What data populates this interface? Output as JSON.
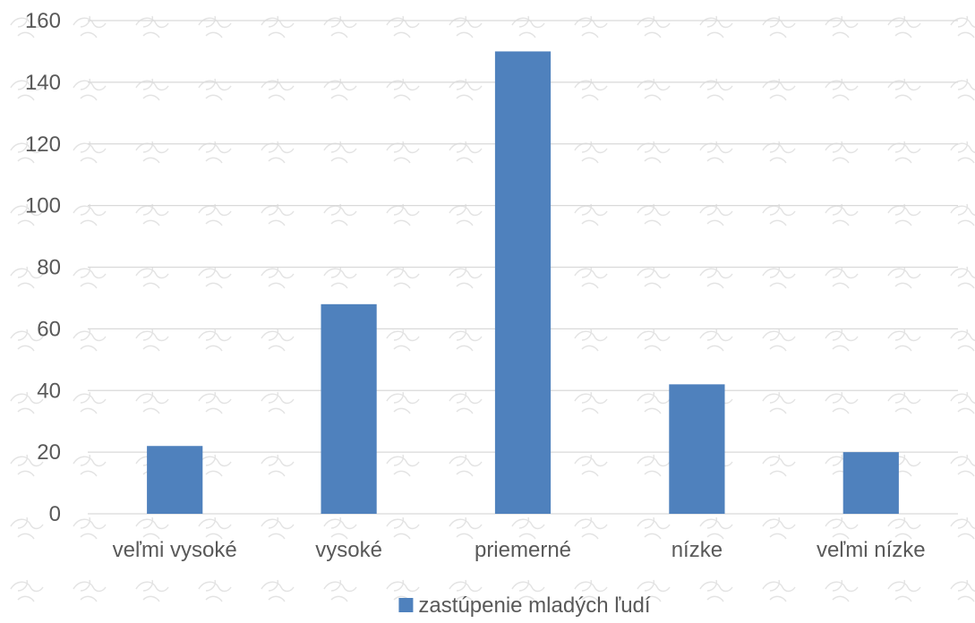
{
  "chart_data": {
    "type": "bar",
    "categories": [
      "veľmi vysoké",
      "vysoké",
      "priemerné",
      "nízke",
      "veľmi nízke"
    ],
    "series": [
      {
        "name": "zastúpenie mladých ľudí",
        "values": [
          22,
          68,
          150,
          42,
          20
        ],
        "color": "#4f81bd"
      }
    ],
    "ylim": [
      0,
      160
    ],
    "yticks": [
      0,
      20,
      40,
      60,
      80,
      100,
      120,
      140,
      160
    ],
    "grid": true,
    "legend_position": "bottom",
    "title": "",
    "xlabel": "",
    "ylabel": ""
  }
}
